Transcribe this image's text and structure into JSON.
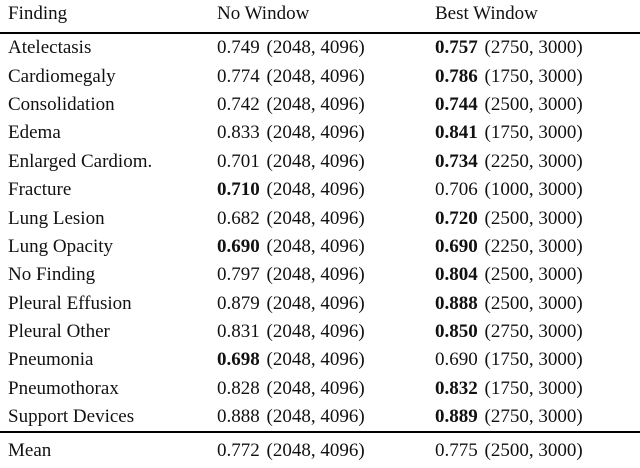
{
  "colors": {
    "background": "#ffffff",
    "text": "#111111",
    "rule": "#000000"
  },
  "table": {
    "header": {
      "finding": "Finding",
      "no_window": "No Window",
      "best_window": "Best Window"
    },
    "rows": [
      {
        "finding": "Atelectasis",
        "nw_value": "0.749",
        "nw_window": "(2048, 4096)",
        "nw_bold": false,
        "bw_value": "0.757",
        "bw_window": "(2750, 3000)",
        "bw_bold": true
      },
      {
        "finding": "Cardiomegaly",
        "nw_value": "0.774",
        "nw_window": "(2048, 4096)",
        "nw_bold": false,
        "bw_value": "0.786",
        "bw_window": "(1750, 3000)",
        "bw_bold": true
      },
      {
        "finding": "Consolidation",
        "nw_value": "0.742",
        "nw_window": "(2048, 4096)",
        "nw_bold": false,
        "bw_value": "0.744",
        "bw_window": "(2500, 3000)",
        "bw_bold": true
      },
      {
        "finding": "Edema",
        "nw_value": "0.833",
        "nw_window": "(2048, 4096)",
        "nw_bold": false,
        "bw_value": "0.841",
        "bw_window": "(1750, 3000)",
        "bw_bold": true
      },
      {
        "finding": "Enlarged Cardiom.",
        "nw_value": "0.701",
        "nw_window": "(2048, 4096)",
        "nw_bold": false,
        "bw_value": "0.734",
        "bw_window": "(2250, 3000)",
        "bw_bold": true
      },
      {
        "finding": "Fracture",
        "nw_value": "0.710",
        "nw_window": "(2048, 4096)",
        "nw_bold": true,
        "bw_value": "0.706",
        "bw_window": "(1000, 3000)",
        "bw_bold": false
      },
      {
        "finding": "Lung Lesion",
        "nw_value": "0.682",
        "nw_window": "(2048, 4096)",
        "nw_bold": false,
        "bw_value": "0.720",
        "bw_window": "(2500, 3000)",
        "bw_bold": true
      },
      {
        "finding": "Lung Opacity",
        "nw_value": "0.690",
        "nw_window": "(2048, 4096)",
        "nw_bold": true,
        "bw_value": "0.690",
        "bw_window": "(2250, 3000)",
        "bw_bold": true
      },
      {
        "finding": "No Finding",
        "nw_value": "0.797",
        "nw_window": "(2048, 4096)",
        "nw_bold": false,
        "bw_value": "0.804",
        "bw_window": "(2500, 3000)",
        "bw_bold": true
      },
      {
        "finding": "Pleural Effusion",
        "nw_value": "0.879",
        "nw_window": "(2048, 4096)",
        "nw_bold": false,
        "bw_value": "0.888",
        "bw_window": "(2500, 3000)",
        "bw_bold": true
      },
      {
        "finding": "Pleural Other",
        "nw_value": "0.831",
        "nw_window": "(2048, 4096)",
        "nw_bold": false,
        "bw_value": "0.850",
        "bw_window": "(2750, 3000)",
        "bw_bold": true
      },
      {
        "finding": "Pneumonia",
        "nw_value": "0.698",
        "nw_window": "(2048, 4096)",
        "nw_bold": true,
        "bw_value": "0.690",
        "bw_window": "(1750, 3000)",
        "bw_bold": false
      },
      {
        "finding": "Pneumothorax",
        "nw_value": "0.828",
        "nw_window": "(2048, 4096)",
        "nw_bold": false,
        "bw_value": "0.832",
        "bw_window": "(1750, 3000)",
        "bw_bold": true
      },
      {
        "finding": "Support Devices",
        "nw_value": "0.888",
        "nw_window": "(2048, 4096)",
        "nw_bold": false,
        "bw_value": "0.889",
        "bw_window": "(2750, 3000)",
        "bw_bold": true
      }
    ],
    "mean": {
      "finding": "Mean",
      "nw_value": "0.772",
      "nw_window": "(2048, 4096)",
      "nw_bold": false,
      "bw_value": "0.775",
      "bw_window": "(2500, 3000)",
      "bw_bold": false
    }
  }
}
